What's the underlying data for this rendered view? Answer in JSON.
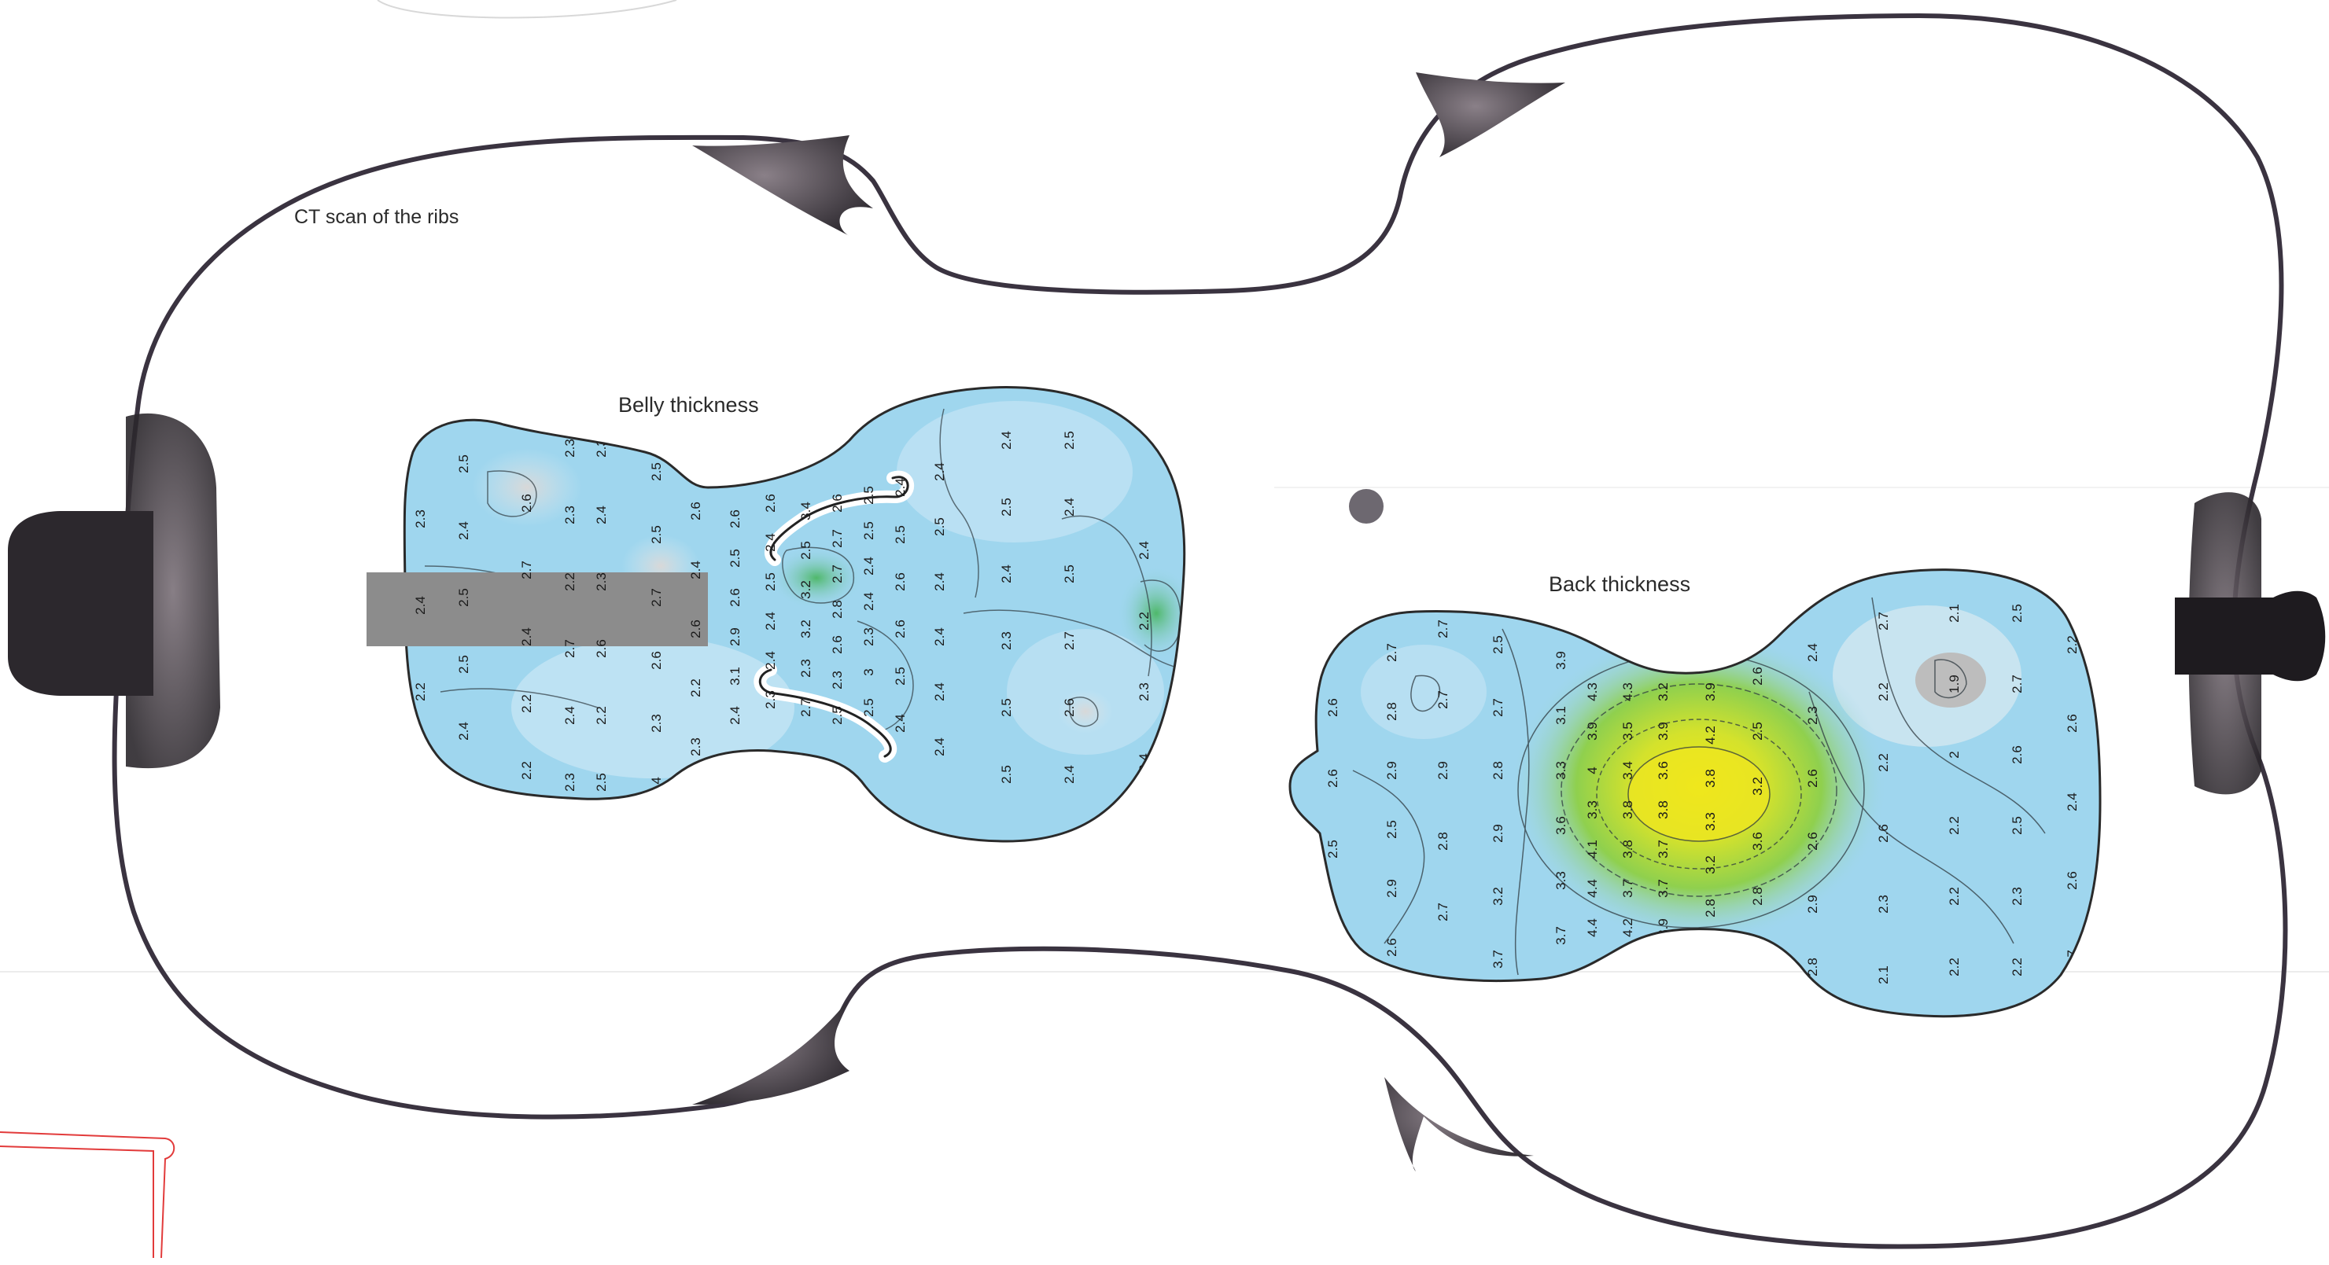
{
  "labels": {
    "ribs_title": "CT scan of the ribs",
    "belly_title": "Belly thickness",
    "back_title": "Back thickness"
  },
  "colors": {
    "outline": "#3a3340",
    "block_dark": "#2e2a30",
    "plate_base": "#9fd6ee",
    "plate_light": "#cfe7f2",
    "plate_green": "#5dbb7a",
    "plate_yellow": "#e8e51e",
    "plate_grey": "#c9c9c9",
    "neck_grey": "#8c8c8c",
    "page_line": "#e6e6e6",
    "red_line": "#e23b3b"
  },
  "belly_readings": [
    "2.3",
    "2.4",
    "2.2",
    "2.5",
    "2.5",
    "2.4",
    "2.5",
    "2.5",
    "2.4",
    "2.6",
    "2.7",
    "2.4",
    "2.2",
    "2.2",
    "2.3",
    "2.3",
    "2.2",
    "2.7",
    "2.4",
    "2.3",
    "2.3",
    "2.4",
    "2.3",
    "2.6",
    "2.2",
    "2.5",
    "2.5",
    "2.5",
    "2.7",
    "2.6",
    "2.3",
    "2.4",
    "2.6",
    "2.4",
    "2.6",
    "2.2",
    "2.3",
    "2.6",
    "2.5",
    "2.6",
    "2.9",
    "3.1",
    "2.4",
    "2.6",
    "2.4",
    "2.5",
    "2.4",
    "2.4",
    "2.3",
    "3.4",
    "2.5",
    "3.2",
    "3.2",
    "2.3",
    "2.7",
    "2.6",
    "2.7",
    "2.7",
    "2.8",
    "2.6",
    "2.3",
    "2.5",
    "2.5",
    "2.5",
    "2.4",
    "2.4",
    "2.3",
    "3",
    "2.5",
    "2.4",
    "2.5",
    "2.6",
    "2.6",
    "2.5",
    "2.4",
    "2.4",
    "2.5",
    "2.4",
    "2.4",
    "2.4",
    "2.4",
    "2.4",
    "2.5",
    "2.4",
    "2.3",
    "2.5",
    "2.5",
    "2.5",
    "2.4",
    "2.5",
    "2.7",
    "2.6",
    "2.4",
    "2.4",
    "2.2",
    "2.3",
    "2.4",
    "2.4",
    "2.5",
    "2.8",
    "3.2",
    "2.8",
    "2.5",
    "2.3",
    "2.3"
  ],
  "back_readings": [
    "2.6",
    "2.6",
    "2.5",
    "2.5",
    "2.7",
    "2.8",
    "2.9",
    "2.5",
    "2.9",
    "2.6",
    "2.7",
    "2.7",
    "2.9",
    "2.8",
    "2.7",
    "2.5",
    "2.7",
    "2.8",
    "2.9",
    "3.2",
    "3.7",
    "3.9",
    "3.1",
    "3.3",
    "3.6",
    "3.3",
    "3.7",
    "4.3",
    "3.9",
    "4",
    "3.3",
    "4.1",
    "4.4",
    "4.4",
    "4.3",
    "3.5",
    "3.4",
    "3.8",
    "3.8",
    "3.7",
    "4.2",
    "3.2",
    "3.9",
    "3.6",
    "3.8",
    "3.7",
    "3.7",
    "3.9",
    "3.9",
    "4.2",
    "3.8",
    "3.3",
    "3.2",
    "2.8",
    "2.6",
    "2.5",
    "3.2",
    "3.6",
    "2.8",
    "2.4",
    "2.4",
    "2.3",
    "2.6",
    "2.6",
    "2.9",
    "2.8",
    "2.7",
    "2.2",
    "2.2",
    "2.6",
    "2.3",
    "2.1",
    "2.1",
    "1.9",
    "2",
    "2.2",
    "2.2",
    "2.2",
    "2.5",
    "2.7",
    "2.6",
    "2.5",
    "2.3",
    "2.2",
    "2.2",
    "2.6",
    "2.4",
    "2.6",
    "2.7",
    "2.6",
    "3",
    "3",
    "3",
    "2.6",
    "2.2",
    "2.2",
    "2.6",
    "2.8",
    "2.5",
    "2.6"
  ]
}
